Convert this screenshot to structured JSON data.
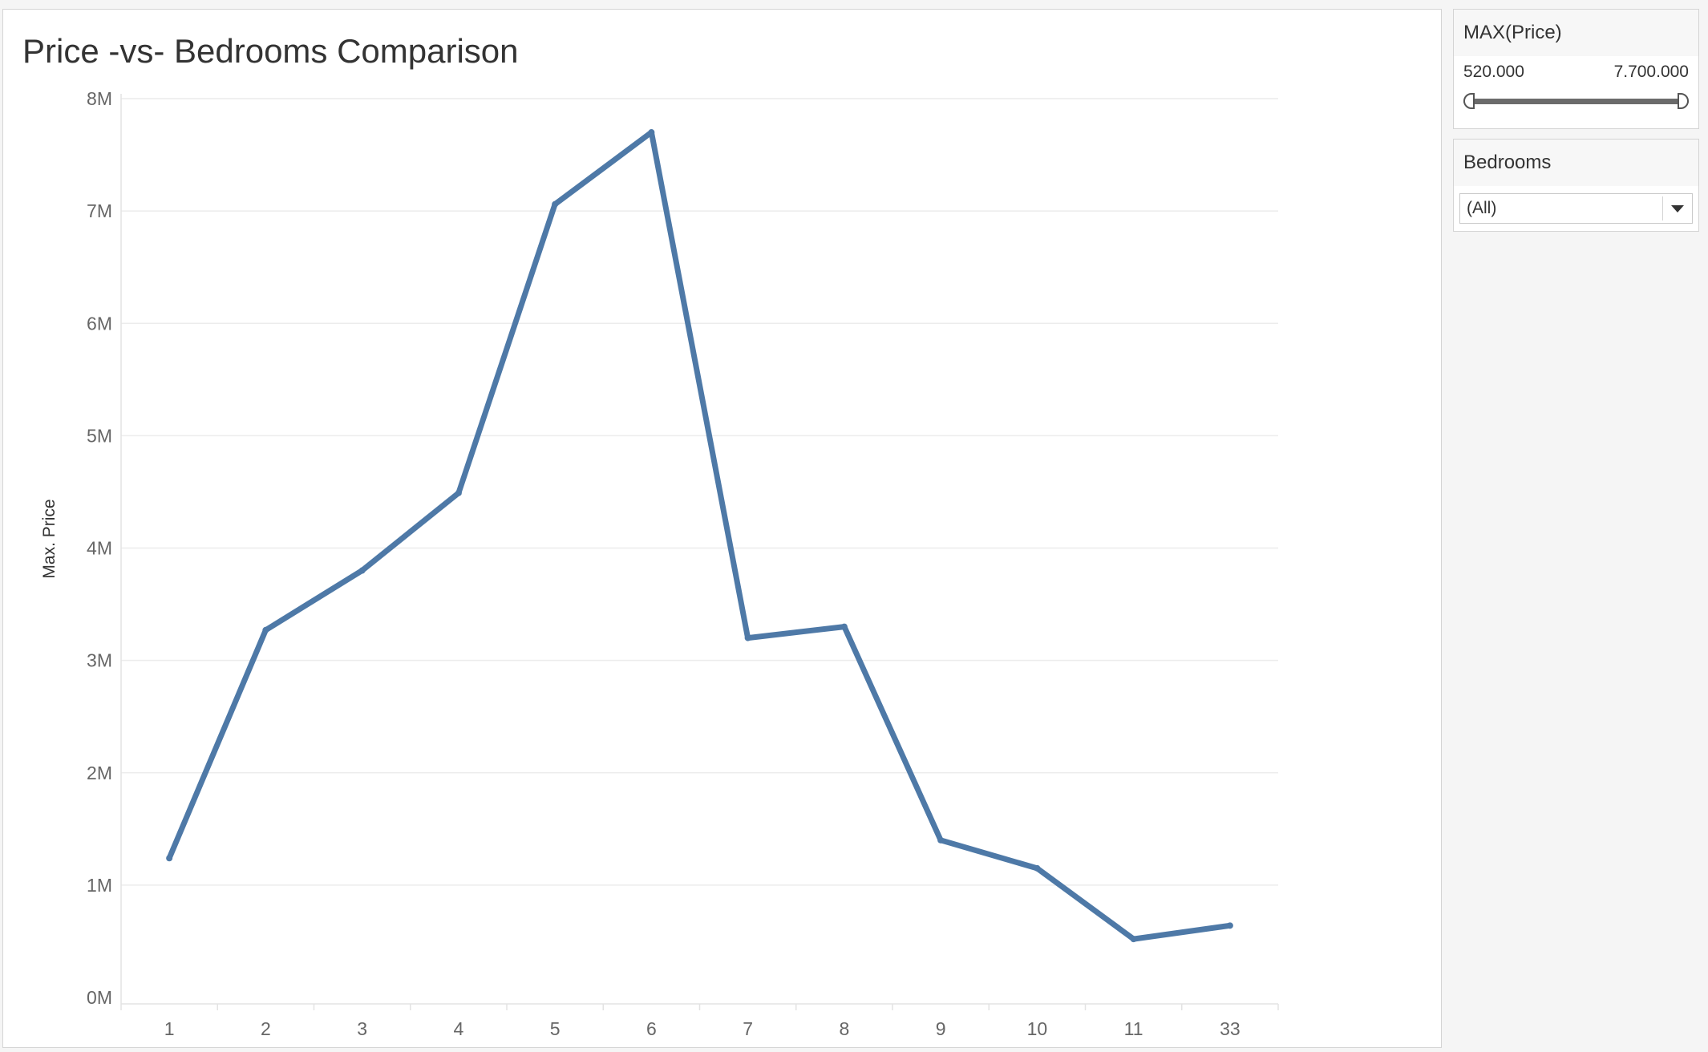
{
  "chart_data": {
    "type": "line",
    "title": "Price -vs- Bedrooms Comparison",
    "xlabel": "",
    "ylabel": "Max. Price",
    "categories": [
      "1",
      "2",
      "3",
      "4",
      "5",
      "6",
      "7",
      "8",
      "9",
      "10",
      "11",
      "33"
    ],
    "values": [
      1240000,
      3270000,
      3800000,
      4490000,
      7060000,
      7700000,
      3200000,
      3300000,
      1400000,
      1150000,
      520000,
      640000
    ],
    "ylim": [
      0,
      8000000
    ],
    "yticks": [
      0,
      1000000,
      2000000,
      3000000,
      4000000,
      5000000,
      6000000,
      7000000,
      8000000
    ],
    "ytick_labels": [
      "0M",
      "1M",
      "2M",
      "3M",
      "4M",
      "5M",
      "6M",
      "7M",
      "8M"
    ],
    "grid": true,
    "line_color": "#4e79a7"
  },
  "filters": {
    "price": {
      "title": "MAX(Price)",
      "min_label": "520.000",
      "max_label": "7.700.000"
    },
    "bedrooms": {
      "title": "Bedrooms",
      "value": "(All)"
    }
  }
}
